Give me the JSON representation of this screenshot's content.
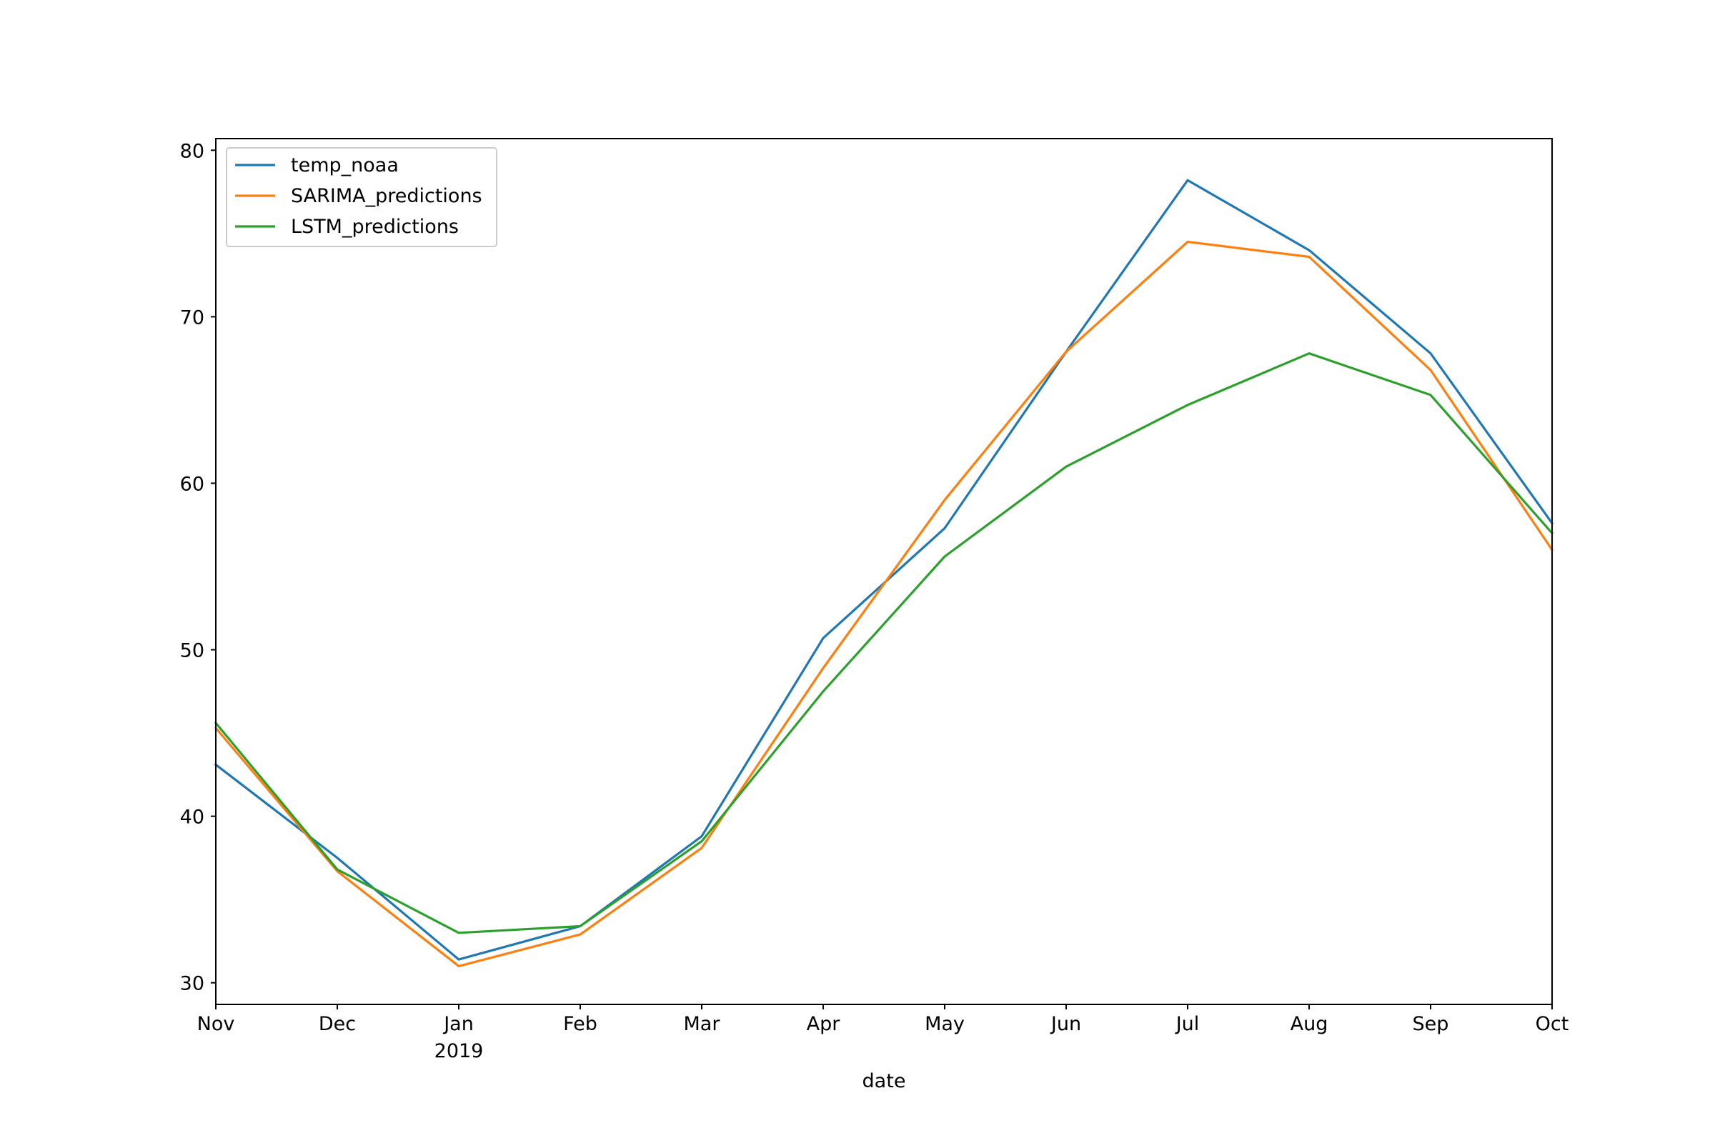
{
  "chart_data": {
    "type": "line",
    "title": "",
    "xlabel": "date",
    "ylabel": "",
    "categories": [
      "Nov",
      "Dec",
      "Jan",
      "Feb",
      "Mar",
      "Apr",
      "May",
      "Jun",
      "Jul",
      "Aug",
      "Sep",
      "Oct"
    ],
    "x_sublabels": [
      "",
      "",
      "2019",
      "",
      "",
      "",
      "",
      "",
      "",
      "",
      "",
      ""
    ],
    "ylim": [
      28.7,
      80.7
    ],
    "yticks": [
      30,
      40,
      50,
      60,
      70,
      80
    ],
    "grid": false,
    "legend_position": "upper-left",
    "series": [
      {
        "name": "temp_noaa",
        "color": "#1f77b4",
        "values": [
          43.1,
          37.5,
          31.4,
          33.4,
          38.8,
          50.7,
          57.3,
          67.9,
          78.2,
          74.0,
          67.8,
          57.6
        ]
      },
      {
        "name": "SARIMA_predictions",
        "color": "#ff7f0e",
        "values": [
          45.3,
          36.7,
          31.0,
          32.9,
          38.1,
          48.9,
          59.0,
          67.9,
          74.5,
          73.6,
          66.8,
          56.0
        ]
      },
      {
        "name": "LSTM_predictions",
        "color": "#2ca02c",
        "values": [
          45.6,
          36.8,
          33.0,
          33.4,
          38.5,
          47.5,
          55.6,
          61.0,
          64.7,
          67.8,
          65.3,
          57.0
        ]
      }
    ]
  }
}
